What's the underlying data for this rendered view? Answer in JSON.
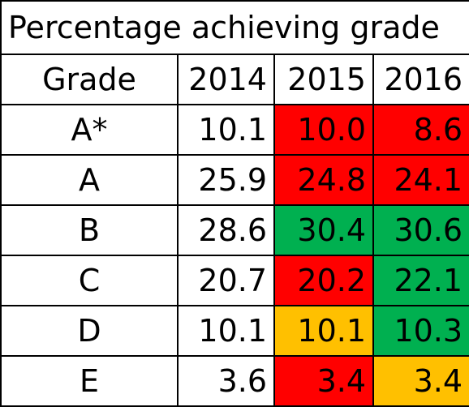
{
  "chart_data": {
    "type": "table",
    "title": "Percentage achieving grade",
    "columns": [
      "Grade",
      "2014",
      "2015",
      "2016"
    ],
    "rows": [
      {
        "grade": "A*",
        "values": [
          "10.1",
          "10.0",
          "8.6"
        ],
        "colors": [
          "#ffffff",
          "#ff0000",
          "#ff0000"
        ]
      },
      {
        "grade": "A",
        "values": [
          "25.9",
          "24.8",
          "24.1"
        ],
        "colors": [
          "#ffffff",
          "#ff0000",
          "#ff0000"
        ]
      },
      {
        "grade": "B",
        "values": [
          "28.6",
          "30.4",
          "30.6"
        ],
        "colors": [
          "#ffffff",
          "#00b050",
          "#00b050"
        ]
      },
      {
        "grade": "C",
        "values": [
          "20.7",
          "20.2",
          "22.1"
        ],
        "colors": [
          "#ffffff",
          "#ff0000",
          "#00b050"
        ]
      },
      {
        "grade": "D",
        "values": [
          "10.1",
          "10.1",
          "10.3"
        ],
        "colors": [
          "#ffffff",
          "#ffc000",
          "#00b050"
        ]
      },
      {
        "grade": "E",
        "values": [
          "3.6",
          "3.4",
          "3.4"
        ],
        "colors": [
          "#ffffff",
          "#ff0000",
          "#ffc000"
        ]
      }
    ]
  }
}
